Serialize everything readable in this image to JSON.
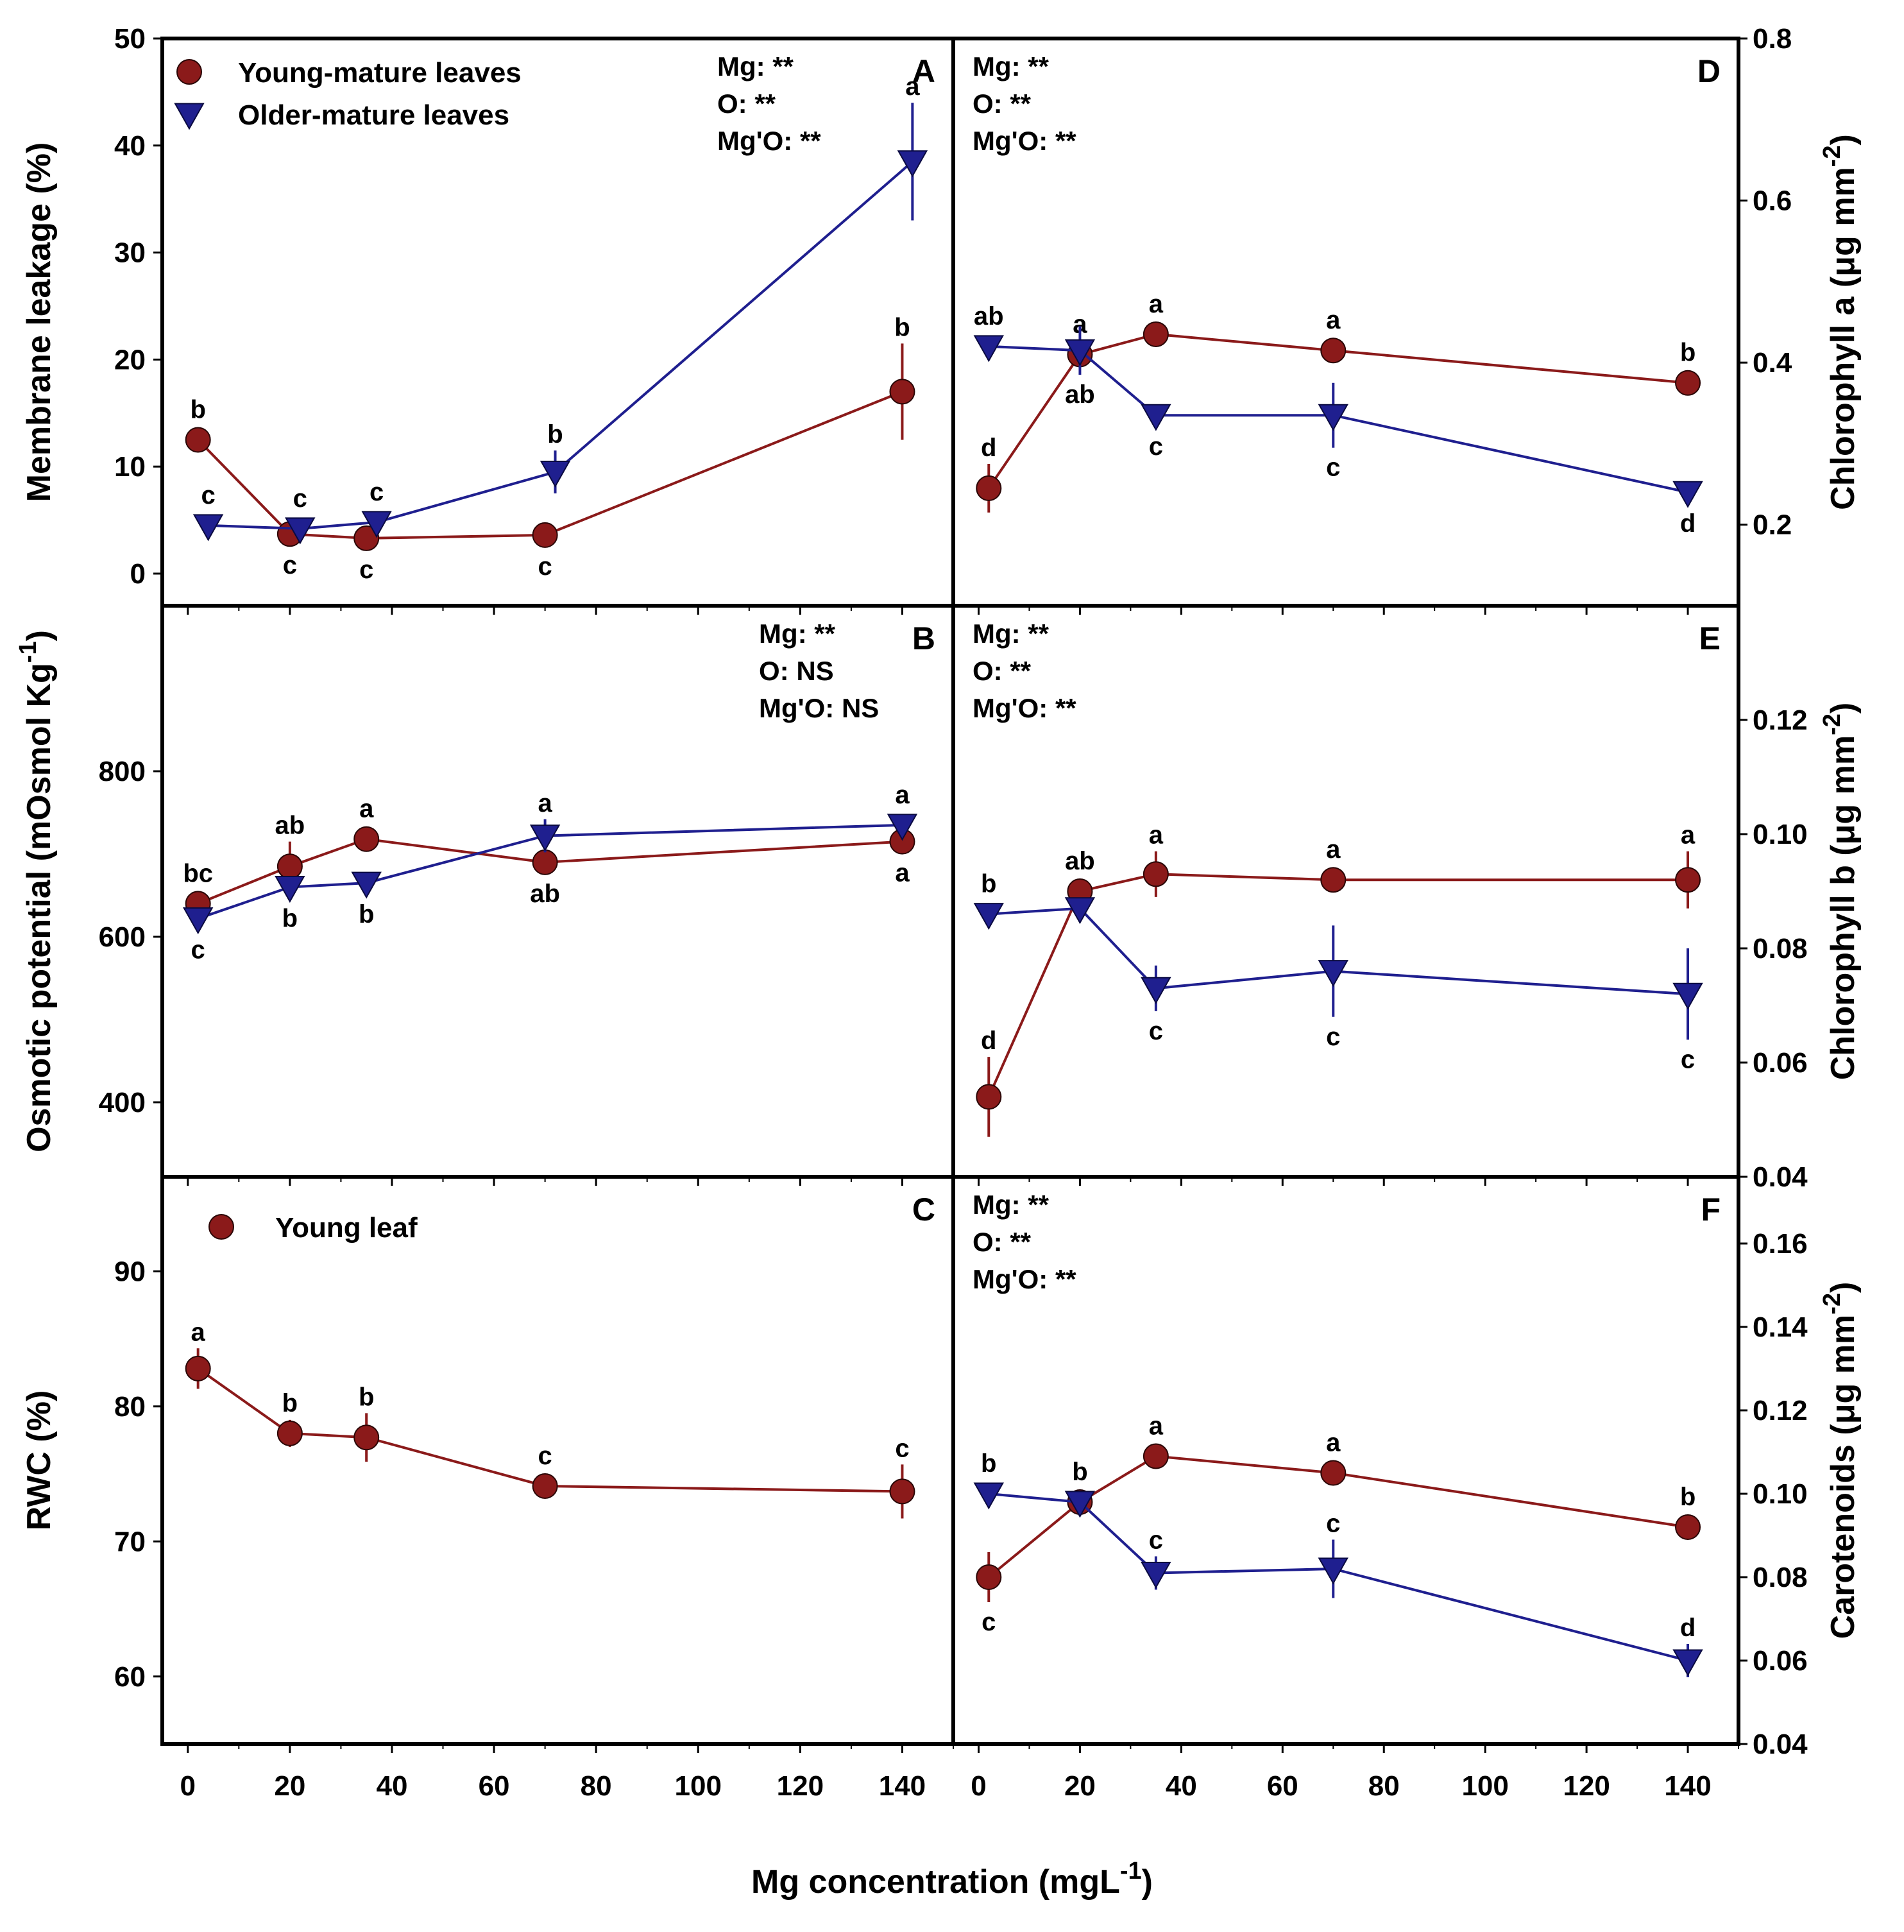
{
  "chart_data": {
    "type": "line",
    "xlabel": "Mg concentration (mgL",
    "xlabel_sup": "-1",
    "xlabel_tail": ")",
    "xlim": [
      -5,
      150
    ],
    "xticks": [
      0,
      20,
      40,
      60,
      80,
      100,
      120,
      140
    ],
    "colors": {
      "young": "#8b1a1a",
      "older": "#1f1f8f"
    },
    "legend_main": [
      {
        "label": "Young-mature leaves",
        "marker": "circle",
        "series": "young"
      },
      {
        "label": "Older-mature leaves",
        "marker": "triangle-down",
        "series": "older"
      }
    ],
    "legend_c": [
      {
        "label": "Young leaf",
        "marker": "circle",
        "series": "young"
      }
    ],
    "panels": [
      {
        "id": "A",
        "letter": "A",
        "ylabel": "Membrane leakage (%)",
        "ylim": [
          -3,
          50
        ],
        "yticks": [
          0,
          10,
          20,
          30,
          40,
          50
        ],
        "stats": [
          "Mg: **",
          "O: **",
          "Mg'O: **"
        ],
        "series": [
          {
            "name": "Young-mature leaves",
            "key": "young",
            "marker": "circle",
            "x": [
              2,
              20,
              35,
              70,
              140
            ],
            "y": [
              12.5,
              3.7,
              3.3,
              3.6,
              17.0
            ],
            "err": [
              0,
              0,
              0,
              0,
              4.5
            ],
            "letters": [
              "b",
              "c",
              "c",
              "c",
              "b"
            ],
            "letter_pos": [
              "above",
              "below",
              "below",
              "below",
              "above"
            ]
          },
          {
            "name": "Older-mature leaves",
            "key": "older",
            "marker": "triangle",
            "x_offset": 2,
            "x": [
              2,
              20,
              35,
              70,
              140
            ],
            "y": [
              4.5,
              4.2,
              4.8,
              9.5,
              38.5
            ],
            "err": [
              0,
              0,
              0,
              2.0,
              5.5
            ],
            "letters": [
              "c",
              "c",
              "c",
              "b",
              "a"
            ],
            "letter_pos": [
              "above",
              "above",
              "above",
              "above",
              "above"
            ]
          }
        ]
      },
      {
        "id": "B",
        "letter": "B",
        "ylabel": "Osmotic potential (mOsmol Kg",
        "ylabel_sup": "-1",
        "ylabel_tail": ")",
        "ylim": [
          310,
          1000
        ],
        "yticks": [
          400,
          600,
          800
        ],
        "stats": [
          "Mg: **",
          "O: NS",
          "Mg'O: NS"
        ],
        "series": [
          {
            "name": "Young-mature leaves",
            "key": "young",
            "marker": "circle",
            "x": [
              2,
              20,
              35,
              70,
              140
            ],
            "y": [
              640,
              685,
              718,
              690,
              715
            ],
            "err": [
              0,
              30,
              0,
              0,
              0
            ],
            "letters": [
              "bc",
              "ab",
              "a",
              "ab",
              "a"
            ],
            "letter_pos": [
              "above",
              "above",
              "above",
              "below",
              "below"
            ]
          },
          {
            "name": "Older-mature leaves",
            "key": "older",
            "marker": "triangle",
            "x": [
              2,
              20,
              35,
              70,
              140
            ],
            "y": [
              622,
              660,
              665,
              722,
              735
            ],
            "err": [
              0,
              0,
              0,
              20,
              0
            ],
            "letters": [
              "c",
              "b",
              "b",
              "a",
              "a"
            ],
            "letter_pos": [
              "below",
              "below",
              "below",
              "above",
              "above"
            ]
          }
        ]
      },
      {
        "id": "C",
        "letter": "C",
        "ylabel": "RWC (%)",
        "ylim": [
          55,
          97
        ],
        "yticks": [
          60,
          70,
          80,
          90
        ],
        "stats": [],
        "series": [
          {
            "name": "Young leaf",
            "key": "young",
            "marker": "circle",
            "x": [
              2,
              20,
              35,
              70,
              140
            ],
            "y": [
              82.8,
              78.0,
              77.7,
              74.1,
              73.7
            ],
            "err": [
              1.5,
              1.0,
              1.8,
              0,
              2.0
            ],
            "letters": [
              "a",
              "b",
              "b",
              "c",
              "c"
            ],
            "letter_pos": [
              "above",
              "above",
              "above",
              "above",
              "above"
            ]
          }
        ]
      },
      {
        "id": "D",
        "letter": "D",
        "ylabel": "Chlorophyll a (μg mm",
        "ylabel_sup": "-2",
        "ylabel_tail": ")",
        "ylim": [
          0.1,
          0.8
        ],
        "yticks": [
          0.2,
          0.4,
          0.6,
          0.8
        ],
        "stats": [
          "Mg: **",
          "O: **",
          "Mg'O: **"
        ],
        "series": [
          {
            "name": "Young-mature leaves",
            "key": "young",
            "marker": "circle",
            "x": [
              2,
              20,
              35,
              70,
              140
            ],
            "y": [
              0.245,
              0.41,
              0.435,
              0.415,
              0.375
            ],
            "err": [
              0.03,
              0,
              0,
              0,
              0
            ],
            "letters": [
              "d",
              "a",
              "a",
              "a",
              "b"
            ],
            "letter_pos": [
              "above",
              "above",
              "above",
              "above",
              "above"
            ]
          },
          {
            "name": "Older-mature leaves",
            "key": "older",
            "marker": "triangle",
            "x": [
              2,
              20,
              35,
              70,
              140
            ],
            "y": [
              0.42,
              0.415,
              0.335,
              0.335,
              0.24
            ],
            "err": [
              0,
              0.03,
              0,
              0.04,
              0
            ],
            "letters": [
              "ab",
              "ab",
              "c",
              "c",
              "d"
            ],
            "letter_pos": [
              "above",
              "below",
              "below",
              "below",
              "below"
            ]
          }
        ]
      },
      {
        "id": "E",
        "letter": "E",
        "ylabel": "Chlorophyll b (μg mm",
        "ylabel_sup": "-2",
        "ylabel_tail": ")",
        "ylim": [
          0.04,
          0.14
        ],
        "yticks": [
          0.04,
          0.06,
          0.08,
          0.1,
          0.12
        ],
        "stats": [
          "Mg: **",
          "O: **",
          "Mg'O: **"
        ],
        "series": [
          {
            "name": "Young-mature leaves",
            "key": "young",
            "marker": "circle",
            "x": [
              2,
              20,
              35,
              70,
              140
            ],
            "y": [
              0.054,
              0.09,
              0.093,
              0.092,
              0.092
            ],
            "err": [
              0.007,
              0,
              0.004,
              0,
              0.005
            ],
            "letters": [
              "d",
              "ab",
              "a",
              "a",
              "a"
            ],
            "letter_pos": [
              "above",
              "above",
              "above",
              "above",
              "above"
            ]
          },
          {
            "name": "Older-mature leaves",
            "key": "older",
            "marker": "triangle",
            "x": [
              2,
              20,
              35,
              70,
              140
            ],
            "y": [
              0.086,
              0.087,
              0.073,
              0.076,
              0.072
            ],
            "err": [
              0,
              0,
              0.004,
              0.008,
              0.008
            ],
            "letters": [
              "b",
              "",
              "c",
              "c",
              "c"
            ],
            "letter_pos": [
              "above",
              "above",
              "below",
              "below",
              "below"
            ]
          }
        ]
      },
      {
        "id": "F",
        "letter": "F",
        "ylabel": "Carotenoids (μg mm",
        "ylabel_sup": "-2",
        "ylabel_tail": ")",
        "ylim": [
          0.04,
          0.176
        ],
        "yticks": [
          0.04,
          0.06,
          0.08,
          0.1,
          0.12,
          0.14,
          0.16
        ],
        "stats": [
          "Mg: **",
          "O: **",
          "Mg'O: **"
        ],
        "series": [
          {
            "name": "Young-mature leaves",
            "key": "young",
            "marker": "circle",
            "x": [
              2,
              20,
              35,
              70,
              140
            ],
            "y": [
              0.08,
              0.098,
              0.109,
              0.105,
              0.092
            ],
            "err": [
              0.006,
              0,
              0,
              0,
              0
            ],
            "letters": [
              "c",
              "b",
              "a",
              "a",
              "b"
            ],
            "letter_pos": [
              "below",
              "above",
              "above",
              "above",
              "above"
            ]
          },
          {
            "name": "Older-mature leaves",
            "key": "older",
            "marker": "triangle",
            "x": [
              2,
              20,
              35,
              70,
              140
            ],
            "y": [
              0.1,
              0.098,
              0.081,
              0.082,
              0.06
            ],
            "err": [
              0,
              0,
              0.004,
              0.007,
              0.004
            ],
            "letters": [
              "b",
              "",
              "c",
              "c",
              "d"
            ],
            "letter_pos": [
              "above",
              "above",
              "above",
              "above",
              "above"
            ]
          }
        ]
      }
    ]
  }
}
